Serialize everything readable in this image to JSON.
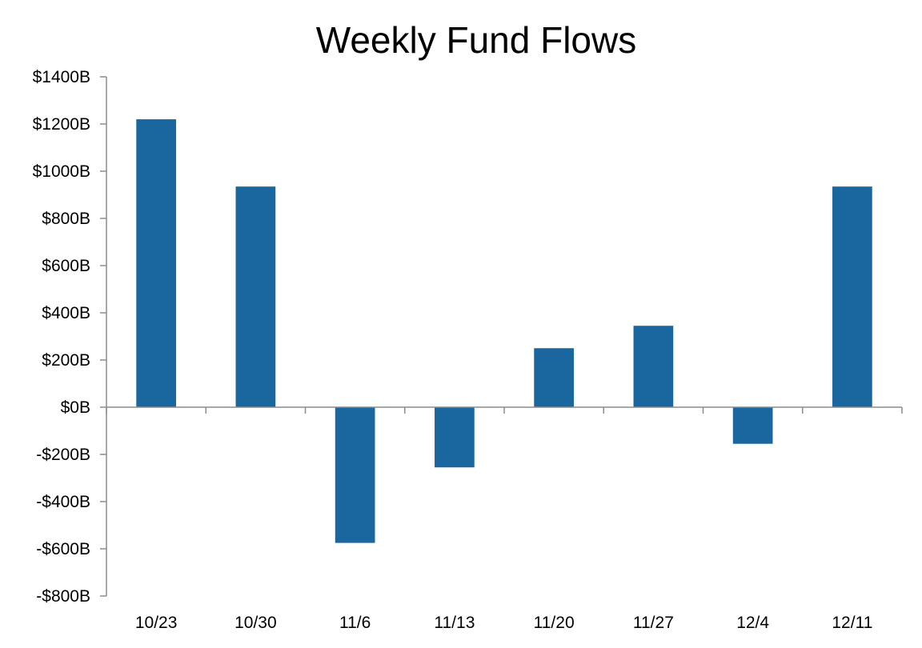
{
  "chart_data": {
    "type": "bar",
    "title": "Weekly Fund Flows",
    "xlabel": "",
    "ylabel": "",
    "categories": [
      "10/23",
      "10/30",
      "11/6",
      "11/13",
      "11/20",
      "11/27",
      "12/4",
      "12/11"
    ],
    "values": [
      1220,
      935,
      -575,
      -255,
      250,
      345,
      -155,
      935
    ],
    "ylim": [
      -800,
      1400
    ],
    "yticks": [
      1400,
      1200,
      1000,
      800,
      600,
      400,
      200,
      0,
      -200,
      -400,
      -600,
      -800
    ],
    "ytick_labels": [
      "$1400B",
      "$1200B",
      "$1000B",
      "$800B",
      "$600B",
      "$400B",
      "$200B",
      "$0B",
      "-$200B",
      "-$400B",
      "-$600B",
      "-$800B"
    ],
    "bar_color": "#1a67a0",
    "grid": false,
    "legend": "none"
  }
}
